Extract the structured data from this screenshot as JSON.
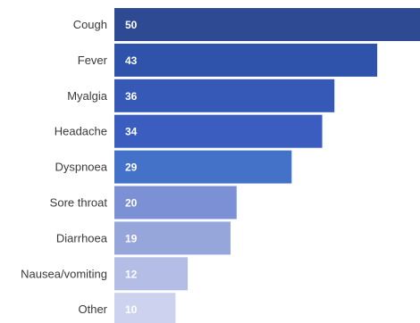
{
  "chart_data": {
    "type": "bar",
    "orientation": "horizontal",
    "categories": [
      "Cough",
      "Fever",
      "Myalgia",
      "Headache",
      "Dyspnoea",
      "Sore throat",
      "Diarrhoea",
      "Nausea/vomiting",
      "Other"
    ],
    "values": [
      50,
      43,
      36,
      34,
      29,
      20,
      19,
      12,
      10
    ],
    "value_labels": [
      "50",
      "43",
      "36",
      "34",
      "29",
      "20",
      "19",
      "12",
      "10"
    ],
    "bar_colors": [
      "#2e4a92",
      "#2f52aa",
      "#3659b8",
      "#3a5dbf",
      "#4472c8",
      "#7c90d6",
      "#97a6da",
      "#b3bde5",
      "#cdd3ee"
    ],
    "title": "",
    "xlabel": "",
    "ylabel": "",
    "xlim": [
      0,
      50
    ],
    "grid": false,
    "legend": "none"
  }
}
